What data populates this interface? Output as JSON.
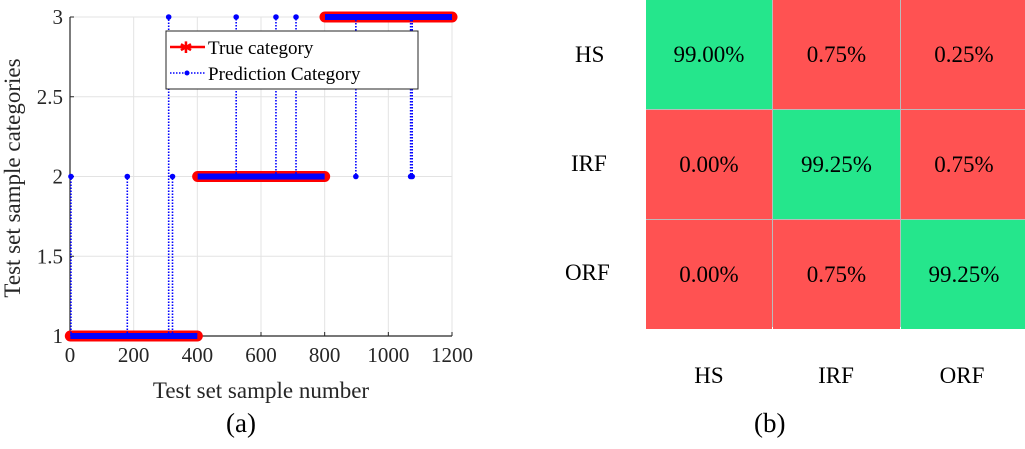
{
  "panel_a": {
    "label": "(a)",
    "xlabel": "Test set sample number",
    "ylabel": "Test set sample categories",
    "xticks": [
      "0",
      "200",
      "400",
      "600",
      "800",
      "1000",
      "1200"
    ],
    "yticks": [
      "1",
      "1.5",
      "2",
      "2.5",
      "3"
    ],
    "legend": [
      "True category",
      "Prediction Category"
    ]
  },
  "panel_b": {
    "label": "(b)",
    "row_labels": [
      "HS",
      "IRF",
      "ORF"
    ],
    "col_labels": [
      "HS",
      "IRF",
      "ORF"
    ],
    "cells": [
      [
        "99.00%",
        "0.75%",
        "0.25%"
      ],
      [
        "0.00%",
        "99.25%",
        "0.75%"
      ],
      [
        "0.00%",
        "0.75%",
        "99.25%"
      ]
    ],
    "colors": {
      "correct": "#25E68C",
      "wrong": "#FF5252"
    }
  },
  "chart_data": [
    {
      "type": "line",
      "title": "",
      "xlabel": "Test set sample number",
      "ylabel": "Test set sample categories",
      "xlim": [
        0,
        1200
      ],
      "ylim": [
        1,
        3
      ],
      "grid": true,
      "legend_position": "upper center",
      "series": [
        {
          "name": "True category",
          "color": "#FF0000",
          "style": "solid, asterisk markers",
          "segments": [
            {
              "x": [
                1,
                400
              ],
              "y": 1
            },
            {
              "x": [
                401,
                800
              ],
              "y": 2
            },
            {
              "x": [
                801,
                1200
              ],
              "y": 3
            }
          ]
        },
        {
          "name": "Prediction Category",
          "color": "#0000FF",
          "style": "dotted, dot markers",
          "misclassified_points": [
            {
              "x": 3,
              "y": 2
            },
            {
              "x": 180,
              "y": 2
            },
            {
              "x": 310,
              "y": 3
            },
            {
              "x": 322,
              "y": 2
            },
            {
              "x": 522,
              "y": 3
            },
            {
              "x": 647,
              "y": 3
            },
            {
              "x": 710,
              "y": 3
            },
            {
              "x": 898,
              "y": 2
            },
            {
              "x": 1070,
              "y": 2
            },
            {
              "x": 1075,
              "y": 2
            }
          ]
        }
      ]
    },
    {
      "type": "heatmap",
      "title": "Confusion matrix",
      "row_labels": [
        "HS",
        "IRF",
        "ORF"
      ],
      "col_labels": [
        "HS",
        "IRF",
        "ORF"
      ],
      "values": [
        [
          99.0,
          0.75,
          0.25
        ],
        [
          0.0,
          99.25,
          0.75
        ],
        [
          0.0,
          0.75,
          99.25
        ]
      ],
      "unit": "%"
    }
  ]
}
